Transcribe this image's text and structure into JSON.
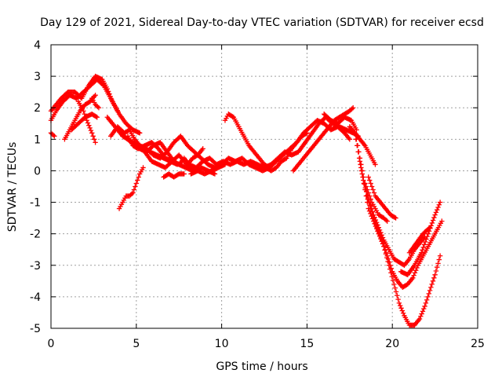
{
  "chart_data": {
    "type": "scatter",
    "title": "Day 129 of 2021, Sidereal Day-to-day VTEC variation (SDTVAR) for receiver ecsd",
    "xlabel": "GPS time / hours",
    "ylabel": "SDTVAR / TECUs",
    "xlim": [
      0,
      25
    ],
    "ylim": [
      -5,
      4
    ],
    "xticks": [
      0,
      5,
      10,
      15,
      20,
      25
    ],
    "yticks": [
      -5,
      -4,
      -3,
      -2,
      -1,
      0,
      1,
      2,
      3,
      4
    ],
    "xtick_labels": [
      "0",
      "5",
      "10",
      "15",
      "20",
      "25"
    ],
    "ytick_labels": [
      "-5",
      "-4",
      "-3",
      "-2",
      "-1",
      "0",
      "1",
      "2",
      "3",
      "4"
    ],
    "grid": true,
    "marker": "+",
    "color": "#ff0000",
    "series": [
      {
        "x": [
          0.0,
          0.3,
          0.6,
          1.0,
          1.4,
          1.8,
          2.2,
          2.6,
          3.0,
          3.3,
          3.6,
          4.0,
          4.4,
          4.8,
          5.2
        ],
        "y": [
          1.9,
          2.1,
          2.3,
          2.5,
          2.5,
          2.3,
          2.7,
          3.0,
          2.9,
          2.6,
          2.2,
          1.8,
          1.5,
          1.3,
          1.2
        ]
      },
      {
        "x": [
          0.0,
          0.3,
          0.7,
          1.1,
          1.5,
          1.9,
          2.3,
          2.7,
          3.1,
          3.5,
          3.9
        ],
        "y": [
          1.6,
          1.9,
          2.2,
          2.4,
          2.3,
          2.5,
          2.7,
          2.9,
          2.7,
          2.3,
          1.9
        ]
      },
      {
        "x": [
          0.0,
          0.2
        ],
        "y": [
          1.2,
          1.1
        ]
      },
      {
        "x": [
          0.8,
          1.1,
          1.4,
          1.7,
          2.0,
          2.3,
          2.6
        ],
        "y": [
          1.0,
          1.3,
          1.6,
          1.9,
          2.1,
          2.2,
          2.4
        ]
      },
      {
        "x": [
          1.2,
          1.6,
          2.0,
          2.4,
          2.7
        ],
        "y": [
          1.3,
          1.5,
          1.7,
          1.8,
          1.7
        ]
      },
      {
        "x": [
          1.6,
          1.9,
          2.1,
          2.4,
          2.6
        ],
        "y": [
          2.2,
          1.9,
          1.6,
          1.2,
          0.9
        ]
      },
      {
        "x": [
          2.4,
          2.6,
          2.8
        ],
        "y": [
          2.3,
          2.1,
          2.0
        ]
      },
      {
        "x": [
          3.3,
          3.6,
          3.9,
          4.2,
          4.5,
          4.8,
          5.2,
          5.6,
          6.0,
          6.4,
          6.8,
          7.2,
          7.5,
          7.8,
          8.1,
          8.5,
          8.9,
          9.3,
          9.7,
          10.1,
          10.5,
          10.9,
          11.3,
          11.7,
          12.1,
          12.5,
          12.9,
          13.3,
          13.7,
          14.1,
          14.5,
          14.9,
          15.3,
          15.7,
          16.1,
          16.5,
          16.9,
          17.3,
          17.7,
          18.0
        ],
        "y": [
          1.7,
          1.5,
          1.3,
          1.1,
          1.0,
          0.9,
          0.7,
          0.6,
          0.8,
          0.9,
          0.6,
          0.3,
          0.2,
          0.4,
          0.2,
          0.1,
          0.3,
          0.4,
          0.2,
          0.3,
          0.2,
          0.3,
          0.2,
          0.3,
          0.2,
          0.1,
          0.2,
          0.4,
          0.6,
          0.5,
          0.6,
          0.9,
          1.2,
          1.5,
          1.7,
          1.5,
          1.4,
          1.3,
          1.2,
          1.1
        ]
      },
      {
        "x": [
          3.5,
          3.9,
          4.3,
          4.6,
          4.9,
          5.2,
          5.6,
          6.0,
          6.4,
          6.8,
          7.2,
          7.6,
          8.0,
          8.4,
          8.8,
          9.2,
          9.6,
          10.0,
          10.4,
          10.8,
          11.2,
          11.6,
          12.0,
          12.4,
          12.8,
          13.2,
          13.6,
          14.0,
          14.4,
          14.8,
          15.2,
          15.6,
          16.0,
          16.4,
          16.8,
          17.2,
          17.5
        ],
        "y": [
          1.1,
          1.4,
          1.2,
          1.3,
          1.0,
          0.8,
          0.7,
          0.5,
          0.4,
          0.6,
          0.9,
          1.1,
          0.8,
          0.6,
          0.4,
          0.2,
          0.1,
          0.2,
          0.4,
          0.3,
          0.4,
          0.2,
          0.1,
          0.0,
          0.1,
          0.3,
          0.5,
          0.7,
          0.9,
          1.2,
          1.4,
          1.6,
          1.5,
          1.3,
          1.4,
          1.2,
          1.0
        ]
      },
      {
        "x": [
          4.0,
          4.3,
          4.7,
          5.1,
          5.5,
          5.9,
          6.3,
          6.7,
          7.1,
          7.5,
          7.8,
          8.1,
          8.4,
          8.8,
          9.2,
          9.6
        ],
        "y": [
          1.3,
          1.1,
          0.9,
          0.8,
          0.6,
          0.3,
          0.2,
          0.1,
          0.3,
          0.5,
          0.3,
          0.1,
          0.0,
          0.1,
          0.0,
          -0.1
        ]
      },
      {
        "x": [
          4.5,
          4.8,
          5.1,
          5.5,
          5.9,
          6.3,
          6.7,
          7.1,
          7.5,
          7.9,
          8.3
        ],
        "y": [
          1.1,
          0.8,
          0.7,
          0.8,
          0.9,
          0.7,
          0.4,
          0.3,
          0.2,
          0.1,
          0.0
        ]
      },
      {
        "x": [
          5.8,
          6.2,
          6.6,
          7.0,
          7.4
        ],
        "y": [
          0.6,
          0.5,
          0.4,
          0.3,
          0.2
        ]
      },
      {
        "x": [
          6.6,
          6.9,
          7.2,
          7.5,
          7.8
        ],
        "y": [
          -0.2,
          -0.1,
          -0.2,
          -0.1,
          -0.1
        ]
      },
      {
        "x": [
          8.0,
          8.3,
          8.6,
          8.9
        ],
        "y": [
          0.2,
          0.4,
          0.5,
          0.7
        ]
      },
      {
        "x": [
          8.2,
          8.6,
          9.0,
          9.4,
          9.8,
          10.2
        ],
        "y": [
          -0.1,
          0.0,
          -0.1,
          0.0,
          0.1,
          0.2
        ]
      },
      {
        "x": [
          4.0,
          4.2,
          4.4,
          4.6,
          4.8,
          5.0,
          5.2,
          5.4
        ],
        "y": [
          -1.2,
          -1.0,
          -0.8,
          -0.8,
          -0.7,
          -0.4,
          -0.1,
          0.1
        ]
      },
      {
        "x": [
          10.2,
          10.4,
          10.7,
          11.0,
          11.3,
          11.6,
          11.9,
          12.2,
          12.5,
          12.8
        ],
        "y": [
          1.6,
          1.8,
          1.7,
          1.4,
          1.1,
          0.8,
          0.6,
          0.4,
          0.2,
          0.1
        ]
      },
      {
        "x": [
          12.6,
          12.9,
          13.2,
          13.5,
          13.8,
          14.1,
          14.4,
          14.7,
          15.0
        ],
        "y": [
          0.1,
          0.0,
          0.1,
          0.3,
          0.4,
          0.7,
          0.9,
          1.1,
          1.2
        ]
      },
      {
        "x": [
          14.2,
          14.5,
          14.8,
          15.1,
          15.4,
          15.7,
          16.0,
          16.3,
          16.6,
          16.9,
          17.2,
          17.5,
          17.7
        ],
        "y": [
          0.0,
          0.2,
          0.4,
          0.6,
          0.8,
          1.0,
          1.2,
          1.4,
          1.6,
          1.7,
          1.8,
          1.9,
          2.0
        ]
      },
      {
        "x": [
          16.0,
          16.4,
          16.8,
          17.2,
          17.6,
          17.9
        ],
        "y": [
          1.8,
          1.6,
          1.5,
          1.7,
          1.6,
          1.3
        ]
      },
      {
        "x": [
          17.8,
          18.0,
          18.2,
          18.4,
          18.6,
          18.9,
          19.2,
          19.5,
          19.8,
          20.1,
          20.4,
          20.7,
          21.0,
          21.3,
          21.6,
          21.9,
          22.2,
          22.5,
          22.8
        ],
        "y": [
          1.2,
          0.6,
          0.0,
          -0.6,
          -1.2,
          -1.6,
          -2.0,
          -2.4,
          -3.0,
          -3.6,
          -4.2,
          -4.6,
          -4.9,
          -4.9,
          -4.7,
          -4.3,
          -3.8,
          -3.3,
          -2.7
        ]
      },
      {
        "x": [
          17.9,
          18.1,
          18.3,
          18.5,
          18.8,
          19.1,
          19.4,
          19.7,
          20.0,
          20.3,
          20.6,
          20.9,
          21.2,
          21.5,
          21.8,
          22.1,
          22.4,
          22.7,
          22.9
        ],
        "y": [
          1.0,
          0.4,
          -0.2,
          -0.8,
          -1.3,
          -1.8,
          -2.2,
          -2.7,
          -3.2,
          -3.5,
          -3.7,
          -3.6,
          -3.4,
          -3.0,
          -2.7,
          -2.4,
          -2.1,
          -1.8,
          -1.6
        ]
      },
      {
        "x": [
          18.1,
          18.3,
          18.6,
          18.9,
          19.2,
          19.5,
          19.8,
          20.1,
          20.4,
          20.7,
          21.0,
          21.3,
          21.6,
          21.9
        ],
        "y": [
          0.3,
          -0.3,
          -0.9,
          -1.4,
          -1.8,
          -2.2,
          -2.5,
          -2.8,
          -2.9,
          -3.0,
          -2.8,
          -2.5,
          -2.3,
          -2.1
        ]
      },
      {
        "x": [
          18.4,
          18.6,
          18.8,
          19.0,
          19.2,
          19.5,
          19.7
        ],
        "y": [
          -0.4,
          -0.7,
          -1.0,
          -1.2,
          -1.4,
          -1.5,
          -1.6
        ]
      },
      {
        "x": [
          18.6,
          18.8,
          19.0,
          19.3,
          19.6,
          19.9,
          20.2
        ],
        "y": [
          -0.2,
          -0.5,
          -0.8,
          -1.0,
          -1.2,
          -1.4,
          -1.5
        ]
      },
      {
        "x": [
          17.5,
          17.8,
          18.1,
          18.4,
          18.7,
          19.0
        ],
        "y": [
          1.4,
          1.2,
          1.0,
          0.8,
          0.5,
          0.2
        ]
      },
      {
        "x": [
          20.5,
          20.9,
          21.3,
          21.7,
          22.1,
          22.5,
          22.8
        ],
        "y": [
          -3.2,
          -3.3,
          -3.0,
          -2.6,
          -2.0,
          -1.4,
          -1.0
        ]
      },
      {
        "x": [
          21.0,
          21.4,
          21.8,
          22.2
        ],
        "y": [
          -2.6,
          -2.3,
          -2.0,
          -1.8
        ]
      }
    ]
  }
}
